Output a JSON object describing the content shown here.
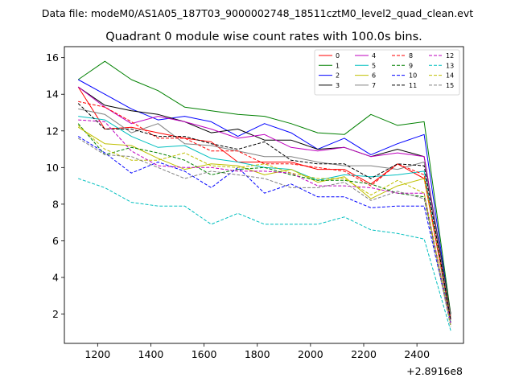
{
  "chart_data": {
    "type": "line",
    "suptitle": "Data file: modeM0/AS1A05_187T03_9000002748_18511cztM0_level2_quad_clean.evt",
    "title": "Quadrant 0 module wise count rates with 100.0s bins.",
    "xlabel": "",
    "ylabel": "",
    "x_offset_label": "+2.8916e8",
    "xlim": [
      1075,
      2575
    ],
    "ylim": [
      0.4,
      16.6
    ],
    "x_ticks": [
      1200,
      1400,
      1600,
      1800,
      2000,
      2200,
      2400
    ],
    "y_ticks": [
      2,
      4,
      6,
      8,
      10,
      12,
      14,
      16
    ],
    "x": [
      1127,
      1227,
      1327,
      1427,
      1527,
      1627,
      1727,
      1827,
      1927,
      2027,
      2127,
      2227,
      2327,
      2427,
      2527
    ],
    "legend_position": "upper-right",
    "series": [
      {
        "name": "0",
        "color": "#ff0000",
        "dash": "solid",
        "values": [
          14.4,
          12.1,
          12.2,
          11.9,
          11.6,
          11.4,
          10.3,
          10.3,
          10.3,
          9.9,
          9.9,
          9.1,
          10.2,
          9.4,
          1.7
        ]
      },
      {
        "name": "1",
        "color": "#008000",
        "dash": "solid",
        "values": [
          14.8,
          15.8,
          14.8,
          14.2,
          13.3,
          13.1,
          12.9,
          12.8,
          12.4,
          11.9,
          11.8,
          12.9,
          12.3,
          12.5,
          2.0
        ]
      },
      {
        "name": "2",
        "color": "#0000ff",
        "dash": "solid",
        "values": [
          14.8,
          14.0,
          13.2,
          12.6,
          12.8,
          12.5,
          11.7,
          12.4,
          11.9,
          11.0,
          11.6,
          10.7,
          11.3,
          11.8,
          1.8
        ]
      },
      {
        "name": "3",
        "color": "#000000",
        "dash": "solid",
        "values": [
          14.4,
          13.4,
          13.1,
          12.9,
          12.5,
          11.9,
          12.1,
          11.5,
          11.5,
          11.0,
          11.1,
          10.6,
          11.0,
          10.6,
          2.0
        ]
      },
      {
        "name": "4",
        "color": "#bf00bf",
        "dash": "solid",
        "values": [
          14.4,
          13.3,
          12.4,
          12.8,
          12.5,
          12.1,
          11.6,
          11.8,
          11.1,
          10.9,
          11.1,
          10.6,
          10.8,
          10.6,
          1.7
        ]
      },
      {
        "name": "5",
        "color": "#00bfbf",
        "dash": "solid",
        "values": [
          12.8,
          12.6,
          11.7,
          11.1,
          11.2,
          10.5,
          10.3,
          10.0,
          9.9,
          9.3,
          9.6,
          9.5,
          9.6,
          9.8,
          1.5
        ]
      },
      {
        "name": "6",
        "color": "#bfbf00",
        "dash": "solid",
        "values": [
          12.2,
          11.3,
          11.2,
          10.5,
          9.9,
          10.2,
          10.1,
          9.6,
          9.9,
          9.2,
          9.5,
          8.3,
          9.0,
          9.4,
          1.8
        ]
      },
      {
        "name": "7",
        "color": "#808080",
        "dash": "solid",
        "values": [
          13.2,
          12.9,
          11.9,
          12.4,
          11.3,
          11.2,
          10.9,
          10.6,
          10.6,
          10.3,
          10.1,
          10.1,
          9.9,
          10.3,
          1.9
        ]
      },
      {
        "name": "8",
        "color": "#ff0000",
        "dash": "dashed",
        "values": [
          13.6,
          13.3,
          12.5,
          11.6,
          11.6,
          10.9,
          10.9,
          10.2,
          10.2,
          10.0,
          9.8,
          9.0,
          10.2,
          9.6,
          1.7
        ]
      },
      {
        "name": "9",
        "color": "#008000",
        "dash": "dashed",
        "values": [
          12.4,
          10.7,
          11.1,
          10.8,
          10.4,
          9.6,
          9.9,
          10.0,
          9.6,
          9.3,
          9.3,
          9.1,
          8.6,
          8.4,
          1.6
        ]
      },
      {
        "name": "10",
        "color": "#0000ff",
        "dash": "dashed",
        "values": [
          11.7,
          10.8,
          9.7,
          10.3,
          9.8,
          8.9,
          10.0,
          8.6,
          9.1,
          8.4,
          8.4,
          7.8,
          7.9,
          7.9,
          1.5
        ]
      },
      {
        "name": "11",
        "color": "#000000",
        "dash": "dashed",
        "values": [
          13.5,
          12.1,
          12.1,
          11.7,
          11.7,
          11.3,
          11.0,
          11.4,
          10.4,
          10.2,
          10.2,
          9.4,
          10.2,
          10.1,
          1.7
        ]
      },
      {
        "name": "12",
        "color": "#bf00bf",
        "dash": "dashed",
        "values": [
          12.6,
          12.5,
          10.9,
          10.1,
          10.0,
          10.0,
          9.8,
          9.8,
          9.7,
          9.0,
          9.0,
          8.9,
          8.6,
          8.6,
          1.5
        ]
      },
      {
        "name": "13",
        "color": "#00bfbf",
        "dash": "dashed",
        "values": [
          9.4,
          8.9,
          8.1,
          7.9,
          7.9,
          6.9,
          7.5,
          6.9,
          6.9,
          6.9,
          7.3,
          6.6,
          6.4,
          6.1,
          1.1
        ]
      },
      {
        "name": "14",
        "color": "#bfbf00",
        "dash": "dashed",
        "values": [
          12.3,
          11.0,
          10.4,
          10.4,
          10.8,
          10.1,
          10.0,
          10.2,
          9.7,
          9.4,
          9.4,
          8.5,
          9.3,
          8.6,
          1.4
        ]
      },
      {
        "name": "15",
        "color": "#808080",
        "dash": "dashed",
        "values": [
          11.6,
          10.7,
          10.6,
          10.0,
          9.4,
          9.8,
          9.6,
          9.4,
          8.9,
          8.9,
          9.2,
          8.2,
          8.7,
          8.3,
          1.3
        ]
      }
    ]
  }
}
